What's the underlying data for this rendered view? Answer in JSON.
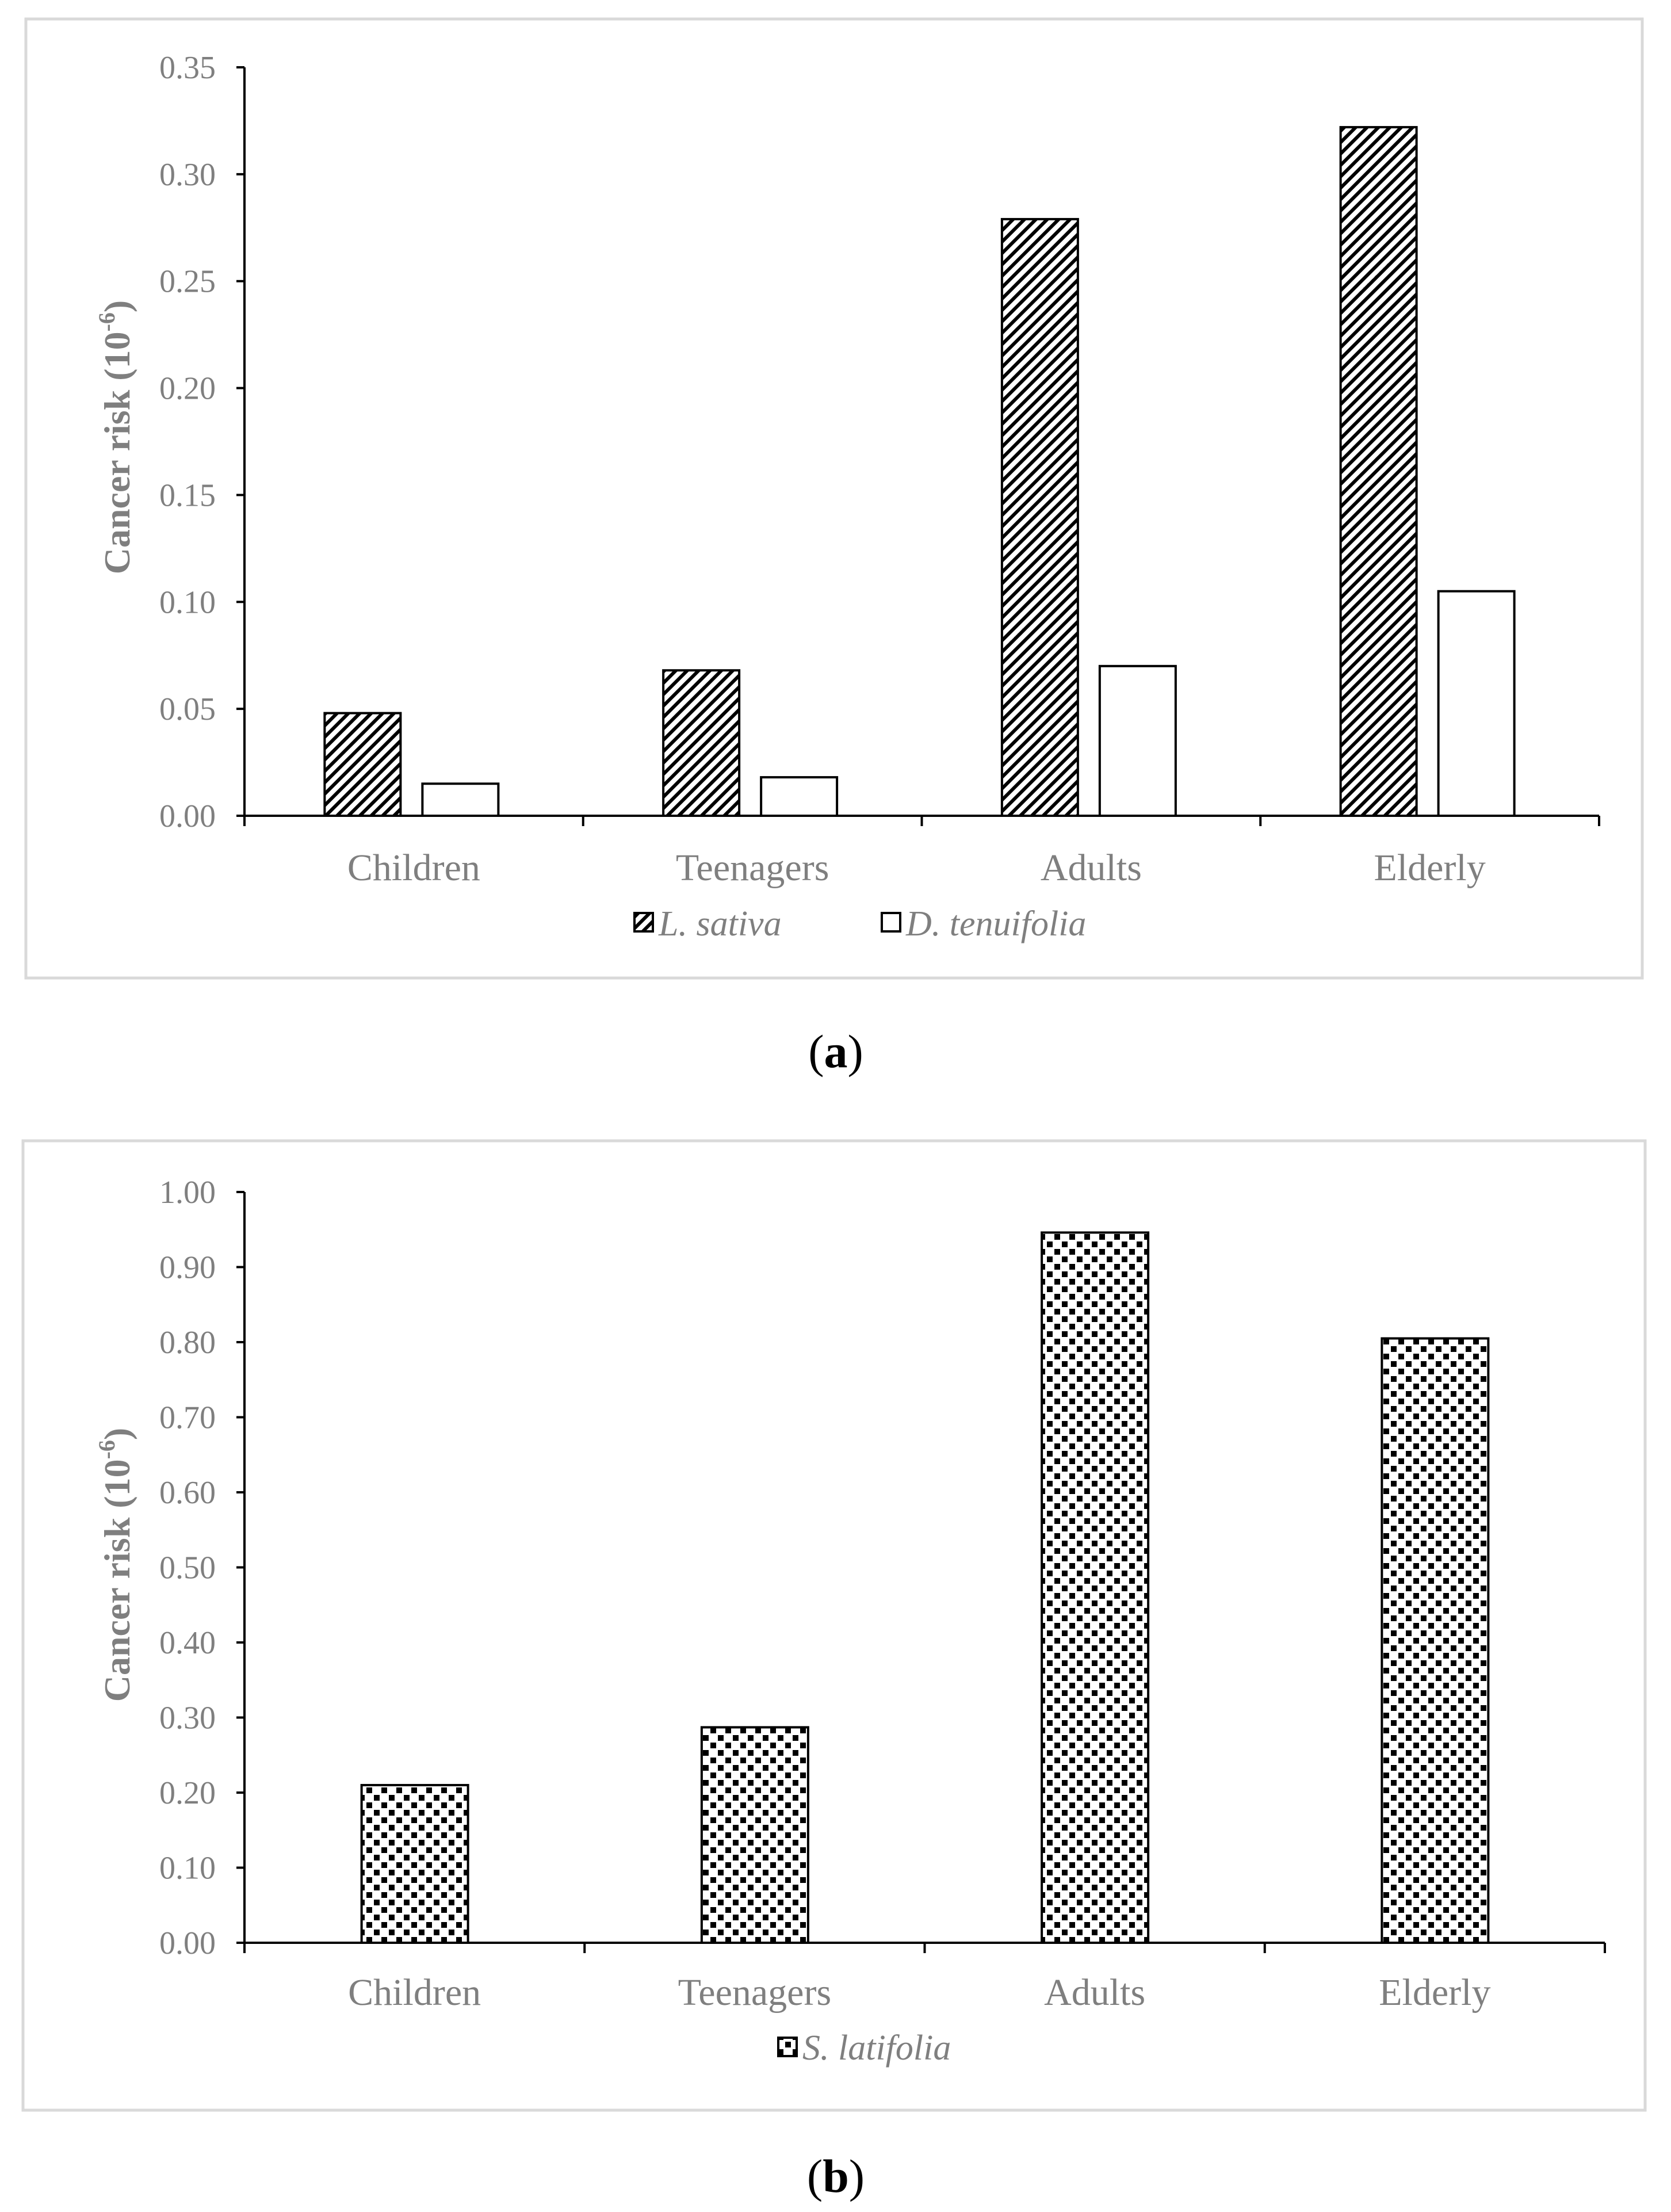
{
  "chart_data": [
    {
      "type": "bar",
      "panel_label": "a",
      "categories": [
        "Children",
        "Teenagers",
        "Adults",
        "Elderly"
      ],
      "series": [
        {
          "name": "L. sativa",
          "values": [
            0.048,
            0.068,
            0.279,
            0.322
          ],
          "pattern": "diagonal-hatch"
        },
        {
          "name": "D. tenuifolia",
          "values": [
            0.015,
            0.018,
            0.07,
            0.105
          ],
          "pattern": "none"
        }
      ],
      "ylabel": "Cancer risk (10",
      "ylabel_sup": "-6",
      "ylabel_close": ")",
      "ylim": [
        0,
        0.35
      ],
      "yticks": [
        "0.00",
        "0.05",
        "0.10",
        "0.15",
        "0.20",
        "0.25",
        "0.30",
        "0.35"
      ],
      "legend_position": "bottom-center"
    },
    {
      "type": "bar",
      "panel_label": "b",
      "categories": [
        "Children",
        "Teenagers",
        "Adults",
        "Elderly"
      ],
      "series": [
        {
          "name": "S. latifolia",
          "values": [
            0.21,
            0.287,
            0.946,
            0.805
          ],
          "pattern": "checker-dots"
        }
      ],
      "ylabel": "Cancer risk (10",
      "ylabel_sup": "-6",
      "ylabel_close": ")",
      "ylim": [
        0,
        1.0
      ],
      "yticks": [
        "0.00",
        "0.10",
        "0.20",
        "0.30",
        "0.40",
        "0.50",
        "0.60",
        "0.70",
        "0.80",
        "0.90",
        "1.00"
      ],
      "legend_position": "bottom-center"
    }
  ],
  "colors": {
    "axis": "#000000",
    "tick_text": "#7f7f7f",
    "frame": "#d9d9d9",
    "bar_fill": "#ffffff"
  }
}
